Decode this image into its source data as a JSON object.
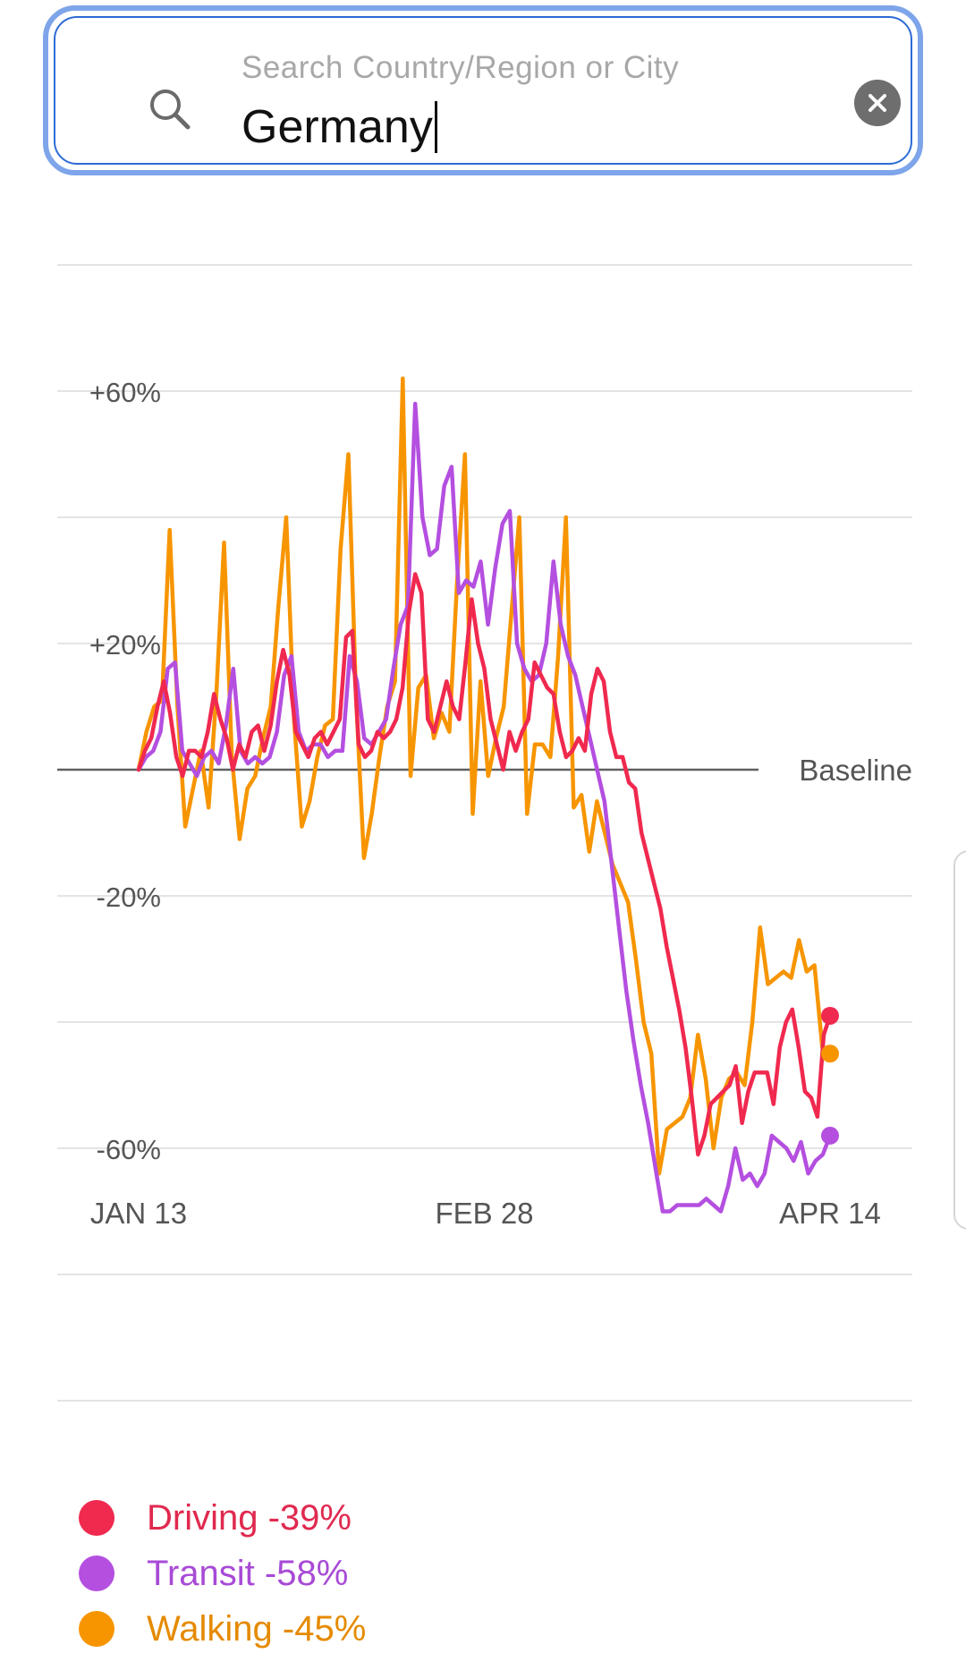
{
  "search": {
    "placeholder": "Search Country/Region or City",
    "value": "Germany"
  },
  "colors": {
    "driving": "#f0294f",
    "transit": "#b44fe0",
    "walking": "#f79500",
    "grid": "#e4e4e4",
    "baseline": "#616161"
  },
  "chart_data": {
    "type": "line",
    "title": "",
    "xlabel": "",
    "ylabel": "",
    "ylim": [
      -80,
      80
    ],
    "y_ticks": [
      {
        "value": 60,
        "label": "+60%"
      },
      {
        "value": 20,
        "label": "+20%"
      },
      {
        "value": -20,
        "label": "-20%"
      },
      {
        "value": -60,
        "label": "-60%"
      }
    ],
    "grid_values": [
      80,
      60,
      40,
      20,
      -20,
      -40,
      -60,
      -80,
      -100
    ],
    "baseline_label": "Baseline",
    "x_ticks": [
      {
        "index": 0,
        "label": "JAN 13"
      },
      {
        "index": 46,
        "label": "FEB 28"
      },
      {
        "index": 92,
        "label": "APR 14"
      }
    ],
    "series": [
      {
        "name": "Driving",
        "key": "driving",
        "label": "Driving -39%",
        "values": [
          0,
          3,
          5,
          10,
          14,
          9,
          2,
          -1,
          3,
          3,
          2,
          6,
          12,
          8,
          5,
          0,
          4,
          2,
          6,
          7,
          3,
          7,
          14,
          19,
          15,
          6,
          4,
          2,
          5,
          6,
          4,
          6,
          8,
          21,
          22,
          4,
          2,
          3,
          6,
          5,
          6,
          8,
          13,
          25,
          31,
          28,
          8,
          6,
          10,
          14,
          10,
          8,
          17,
          27,
          20,
          16,
          8,
          4,
          0,
          6,
          3,
          6,
          8,
          17,
          15,
          13,
          12,
          6,
          2,
          3,
          5,
          3,
          12,
          16,
          14,
          6,
          2,
          2,
          -2,
          -3,
          -10,
          -14,
          -18,
          -22,
          -28,
          -33,
          -38,
          -44,
          -52,
          -61,
          -58,
          -53,
          -52,
          -51,
          -50,
          -47,
          -56,
          -51,
          -48,
          -48,
          -48,
          -53,
          -44,
          -40,
          -38,
          -44,
          -51,
          -52,
          -55,
          -42,
          -39
        ]
      },
      {
        "name": "Transit",
        "key": "transit",
        "label": "Transit -58%",
        "values": [
          0,
          2,
          3,
          6,
          16,
          17,
          3,
          1,
          -1,
          2,
          3,
          1,
          7,
          16,
          3,
          1,
          2,
          1,
          2,
          6,
          15,
          18,
          6,
          3,
          4,
          4,
          2,
          3,
          3,
          18,
          14,
          5,
          4,
          6,
          8,
          16,
          23,
          26,
          58,
          40,
          34,
          35,
          45,
          48,
          28,
          30,
          29,
          33,
          23,
          32,
          39,
          41,
          20,
          16,
          14,
          15,
          20,
          33,
          23,
          18,
          15,
          10,
          5,
          0,
          -5,
          -15,
          -25,
          -35,
          -43,
          -50,
          -56,
          -63,
          -70,
          -70,
          -69,
          -69,
          -69,
          -69,
          -68,
          -69,
          -70,
          -66,
          -60,
          -65,
          -64,
          -66,
          -64,
          -58,
          -59,
          -60,
          -62,
          -59,
          -64,
          -62,
          -61,
          -58
        ]
      },
      {
        "name": "Walking",
        "key": "walking",
        "label": "Walking -45%",
        "values": [
          0,
          6,
          10,
          11,
          38,
          10,
          -9,
          -3,
          3,
          -6,
          12,
          36,
          2,
          -11,
          -3,
          -1,
          5,
          10,
          26,
          40,
          8,
          -9,
          -5,
          2,
          7,
          8,
          35,
          50,
          11,
          -14,
          -7,
          2,
          10,
          14,
          62,
          -1,
          13,
          15,
          5,
          9,
          6,
          30,
          50,
          -7,
          14,
          -1,
          5,
          10,
          25,
          40,
          -7,
          4,
          4,
          2,
          18,
          40,
          -6,
          -4,
          -13,
          -5,
          -10,
          -15,
          -18,
          -21,
          -30,
          -40,
          -45,
          -64,
          -57,
          -56,
          -55,
          -52,
          -42,
          -49,
          -60,
          -52,
          -49,
          -48,
          -50,
          -40,
          -25,
          -34,
          -33,
          -32,
          -33,
          -27,
          -32,
          -31,
          -44,
          -45
        ]
      }
    ]
  }
}
